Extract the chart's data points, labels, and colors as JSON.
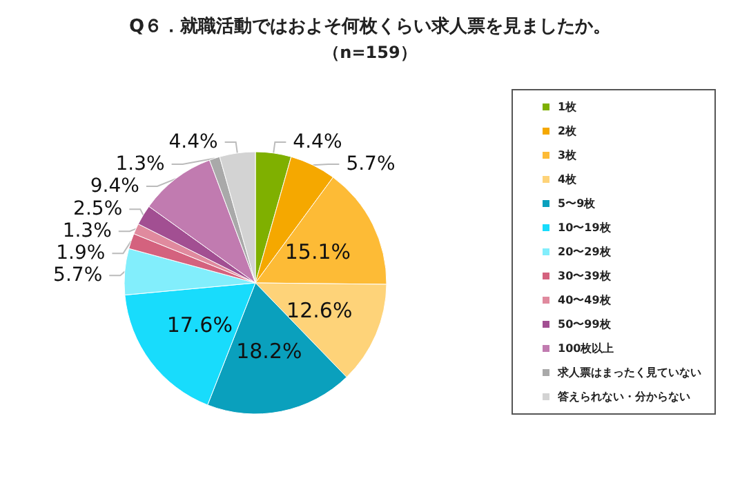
{
  "chart_data": {
    "type": "pie",
    "title": "Q６．就職活動ではおよそ何枚くらい求人票を見ましたか。",
    "subtitle": "（n=159）",
    "categories": [
      "1枚",
      "2枚",
      "3枚",
      "4枚",
      "5〜9枚",
      "10〜19枚",
      "20〜29枚",
      "30〜39枚",
      "40〜49枚",
      "50〜99枚",
      "100枚以上",
      "求人票はまったく見ていない",
      "答えられない・分からない"
    ],
    "values": [
      4.4,
      5.7,
      15.1,
      12.6,
      18.2,
      17.6,
      5.7,
      1.9,
      1.3,
      2.5,
      9.4,
      1.3,
      4.4
    ],
    "colors": [
      "#7fb000",
      "#f5a800",
      "#fdbb36",
      "#fed379",
      "#0aa0bd",
      "#18dcfc",
      "#82eefc",
      "#d4627e",
      "#e08a9e",
      "#a24f92",
      "#c17bb0",
      "#a9a9a9",
      "#d3d3d3"
    ],
    "value_labels": [
      "4.4%",
      "5.7%",
      "15.1%",
      "12.6%",
      "18.2%",
      "17.6%",
      "5.7%",
      "1.9%",
      "1.3%",
      "2.5%",
      "9.4%",
      "1.3%",
      "4.4%"
    ],
    "legend": "right"
  }
}
